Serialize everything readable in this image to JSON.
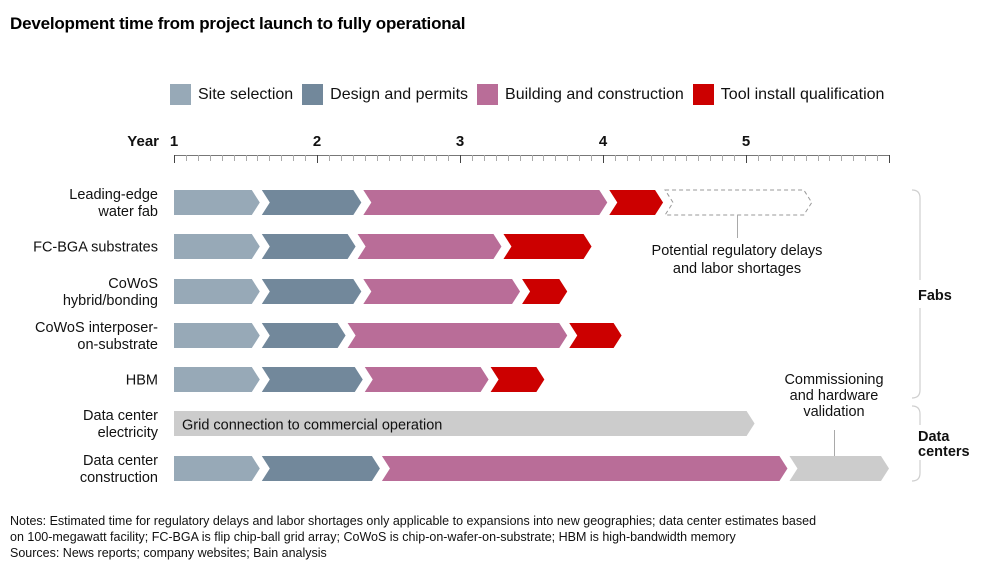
{
  "title": "Development time from project launch to fully operational",
  "legend": [
    {
      "label": "Site selection",
      "color": "#97a9b7"
    },
    {
      "label": "Design and permits",
      "color": "#72889b"
    },
    {
      "label": "Building and construction",
      "color": "#b96d98"
    },
    {
      "label": "Tool install qualification",
      "color": "#cc0000"
    }
  ],
  "colors": {
    "site": "#97a9b7",
    "design": "#72889b",
    "building": "#b96d98",
    "tool": "#cc0000",
    "grey": "#cccccc",
    "dashed": "#999999",
    "bracket": "#cfcfcf",
    "leader": "#a9a9a9"
  },
  "notes": {
    "line1": "Notes: Estimated time for regulatory delays and labor shortages only applicable to expansions into new geographies; data center estimates based",
    "line2": "on 100-megawatt facility; FC-BGA is flip chip-ball grid array; CoWoS is chip-on-wafer-on-substrate; HBM is high-bandwidth memory",
    "line3": "Sources: News reports; company websites; Bain analysis"
  },
  "chart_data": {
    "type": "gantt",
    "title": "Development time from project launch to fully operational",
    "xlabel": "Year",
    "x_ticks": [
      "1",
      "2",
      "3",
      "4",
      "5"
    ],
    "x_range": [
      1,
      6
    ],
    "minor_ticks_per_year": 12,
    "rows": [
      {
        "label": [
          "Leading-edge",
          "water fab"
        ],
        "group": "Fabs",
        "segments": [
          {
            "phase": "site",
            "start": 1.0,
            "end": 1.6
          },
          {
            "phase": "design",
            "start": 1.6,
            "end": 2.31
          },
          {
            "phase": "building",
            "start": 2.31,
            "end": 4.03
          },
          {
            "phase": "tool",
            "start": 4.03,
            "end": 4.42
          },
          {
            "phase": "dashed",
            "start": 4.42,
            "end": 5.46
          }
        ]
      },
      {
        "label": [
          "FC-BGA substrates"
        ],
        "group": "Fabs",
        "segments": [
          {
            "phase": "site",
            "start": 1.0,
            "end": 1.6
          },
          {
            "phase": "design",
            "start": 1.6,
            "end": 2.27
          },
          {
            "phase": "building",
            "start": 2.27,
            "end": 3.29
          },
          {
            "phase": "tool",
            "start": 3.29,
            "end": 3.92
          }
        ]
      },
      {
        "label": [
          "CoWoS",
          "hybrid/bonding"
        ],
        "group": "Fabs",
        "segments": [
          {
            "phase": "site",
            "start": 1.0,
            "end": 1.6
          },
          {
            "phase": "design",
            "start": 1.6,
            "end": 2.31
          },
          {
            "phase": "building",
            "start": 2.31,
            "end": 3.42
          },
          {
            "phase": "tool",
            "start": 3.42,
            "end": 3.75
          }
        ]
      },
      {
        "label": [
          "CoWoS interposer-",
          "on-substrate"
        ],
        "group": "Fabs",
        "segments": [
          {
            "phase": "site",
            "start": 1.0,
            "end": 1.6
          },
          {
            "phase": "design",
            "start": 1.6,
            "end": 2.2
          },
          {
            "phase": "building",
            "start": 2.2,
            "end": 3.75
          },
          {
            "phase": "tool",
            "start": 3.75,
            "end": 4.13
          }
        ]
      },
      {
        "label": [
          "HBM"
        ],
        "group": "Fabs",
        "segments": [
          {
            "phase": "site",
            "start": 1.0,
            "end": 1.6
          },
          {
            "phase": "design",
            "start": 1.6,
            "end": 2.32
          },
          {
            "phase": "building",
            "start": 2.32,
            "end": 3.2
          },
          {
            "phase": "tool",
            "start": 3.2,
            "end": 3.59
          }
        ]
      },
      {
        "label": [
          "Data center",
          "electricity"
        ],
        "group": "Data centers",
        "segments": [
          {
            "phase": "grey",
            "start": 1.0,
            "end": 5.06,
            "text": "Grid connection to commercial operation"
          }
        ]
      },
      {
        "label": [
          "Data center",
          "construction"
        ],
        "group": "Data centers",
        "segments": [
          {
            "phase": "site",
            "start": 1.0,
            "end": 1.6
          },
          {
            "phase": "design",
            "start": 1.6,
            "end": 2.44
          },
          {
            "phase": "building",
            "start": 2.44,
            "end": 5.29
          },
          {
            "phase": "grey",
            "start": 5.29,
            "end": 6.0
          }
        ]
      }
    ],
    "annotations": [
      {
        "text": [
          "Potential regulatory delays",
          "and labor shortages"
        ],
        "points_to": "Leading-edge water fab dashed segment"
      },
      {
        "text": [
          "Commissioning",
          "and hardware",
          "validation"
        ],
        "points_to": "Data center construction grey segment"
      }
    ],
    "groups": [
      {
        "label": [
          "Fabs"
        ],
        "rows": [
          0,
          4
        ]
      },
      {
        "label": [
          "Data",
          "centers"
        ],
        "rows": [
          5,
          6
        ]
      }
    ]
  }
}
